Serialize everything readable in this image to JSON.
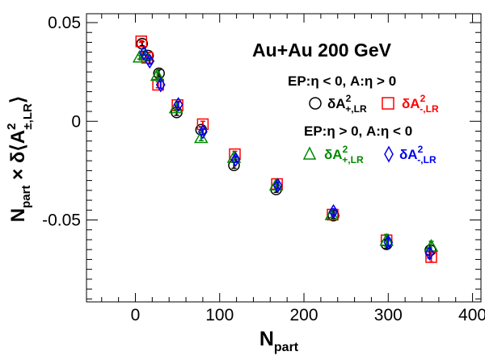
{
  "chart_data": {
    "type": "scatter",
    "title": "Au+Au 200 GeV",
    "xlabel": {
      "main": "N",
      "sub": "part"
    },
    "ylabel": {
      "pre": "N",
      "pre_sub": "part",
      "mid": " × δ⟨A",
      "sup": "2",
      "sub": "±,LR",
      "post": "⟩"
    },
    "xlim": [
      -58,
      410
    ],
    "ylim": [
      -0.0915,
      0.0545
    ],
    "xticks": [
      0,
      100,
      200,
      300,
      400
    ],
    "xtick_labels": [
      "0",
      "100",
      "200",
      "300",
      "400"
    ],
    "yticks": [
      -0.05,
      0,
      0.05
    ],
    "ytick_labels": [
      "-0.05",
      "0",
      "0.05"
    ],
    "grid": false,
    "legend": {
      "group1": "EP:η < 0, A:η > 0",
      "group2": "EP:η > 0, A:η < 0",
      "entries": [
        {
          "base": "δA",
          "sup": "2",
          "sub": "+,LR",
          "color": "#000000",
          "marker": "circle"
        },
        {
          "base": "δA",
          "sup": "2",
          "sub": "-,LR",
          "color": "#ff0000",
          "marker": "square"
        },
        {
          "base": "δA",
          "sup": "2",
          "sub": "+,LR",
          "color": "#008800",
          "marker": "triangle"
        },
        {
          "base": "δA",
          "sup": "2",
          "sub": "-,LR",
          "color": "#0000ee",
          "marker": "diamond"
        }
      ]
    },
    "series": [
      {
        "marker": "circle",
        "color": "#000000",
        "x": [
          8,
          15,
          28,
          49,
          78,
          117,
          167,
          235,
          298,
          350
        ],
        "y": [
          0.0393,
          0.0333,
          0.0243,
          0.0045,
          -0.0043,
          -0.0223,
          -0.0345,
          -0.0478,
          -0.0623,
          -0.0653
        ],
        "err": [
          0.001,
          0.0015,
          0.0018,
          0.0015,
          0.0015,
          0.0015,
          0.0015,
          0.0015,
          0.002,
          0.0025
        ]
      },
      {
        "marker": "square",
        "color": "#ff0000",
        "x": [
          7,
          14,
          27,
          50,
          80,
          118,
          168,
          234,
          298,
          351
        ],
        "y": [
          0.0405,
          0.0322,
          0.0185,
          0.0082,
          -0.0015,
          -0.0167,
          -0.0318,
          -0.0473,
          -0.0603,
          -0.0688
        ],
        "err": [
          0.0005,
          0.001,
          0.0015,
          0.0015,
          0.0015,
          0.0015,
          0.0015,
          0.0015,
          0.0025,
          0.0025
        ]
      },
      {
        "marker": "triangle",
        "color": "#008800",
        "x": [
          5,
          12,
          26,
          48,
          78,
          117,
          167,
          233,
          298,
          351
        ],
        "y": [
          0.0325,
          0.0335,
          0.0232,
          0.0068,
          -0.0083,
          -0.0183,
          -0.0323,
          -0.0473,
          -0.0603,
          -0.0633
        ],
        "err": [
          0.001,
          0.0015,
          0.0018,
          0.0015,
          0.0015,
          0.0015,
          0.0015,
          0.0015,
          0.003,
          0.0025
        ]
      },
      {
        "marker": "diamond",
        "color": "#0000ee",
        "x": [
          10,
          17,
          30,
          51,
          80,
          119,
          169,
          235,
          300,
          349
        ],
        "y": [
          0.0345,
          0.0305,
          0.0185,
          0.0085,
          -0.0053,
          -0.0193,
          -0.0325,
          -0.0458,
          -0.0613,
          -0.0668
        ],
        "err": [
          0.001,
          0.0015,
          0.0018,
          0.0015,
          0.0015,
          0.0015,
          0.0015,
          0.0015,
          0.002,
          0.0025
        ]
      }
    ]
  }
}
